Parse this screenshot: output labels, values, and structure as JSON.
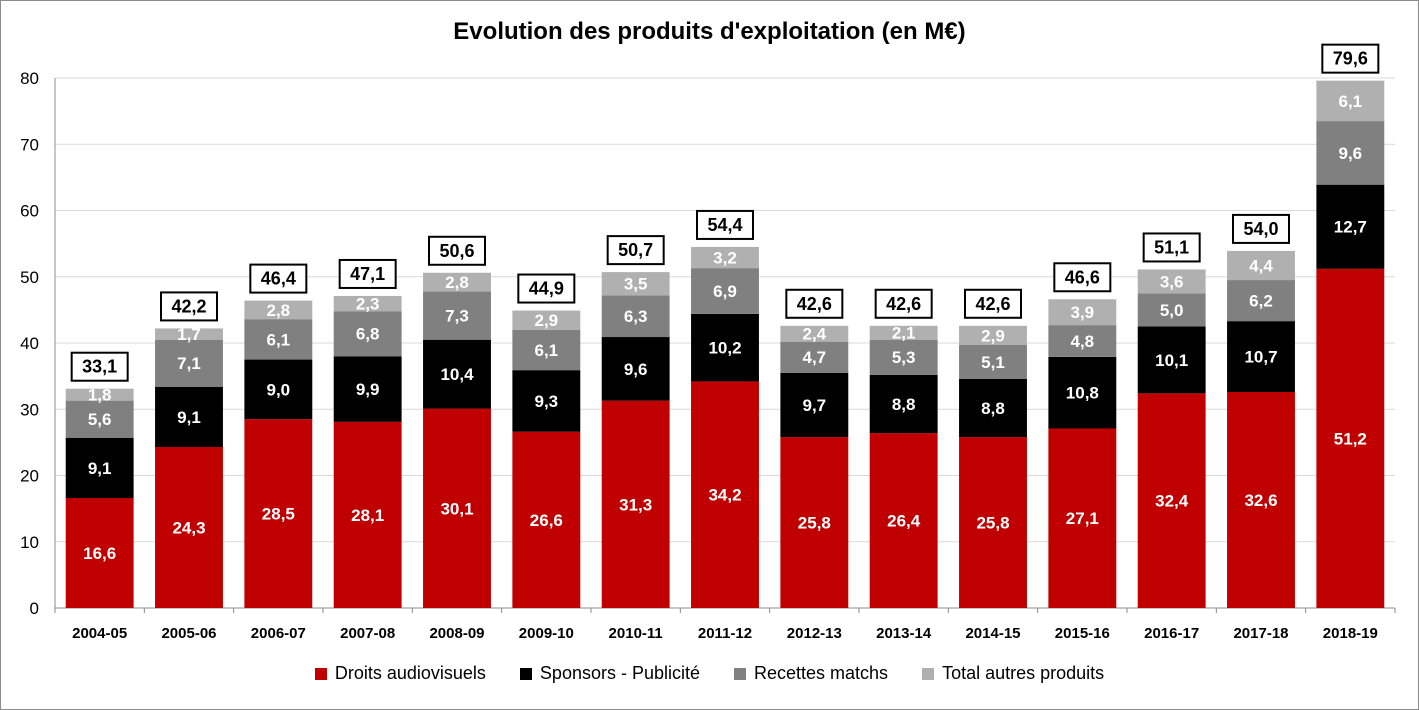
{
  "chart_data": {
    "type": "bar",
    "stacked": true,
    "title": "Evolution des produits d'exploitation (en M€)",
    "xlabel": "",
    "ylabel": "",
    "ylim": [
      0,
      80
    ],
    "yticks": [
      "0",
      "10",
      "20",
      "30",
      "40",
      "50",
      "60",
      "70",
      "80"
    ],
    "grid": true,
    "legend_position": "bottom",
    "categories": [
      "2004-05",
      "2005-06",
      "2006-07",
      "2007-08",
      "2008-09",
      "2009-10",
      "2010-11",
      "2011-12",
      "2012-13",
      "2013-14",
      "2014-15",
      "2015-16",
      "2016-17",
      "2017-18",
      "2018-19"
    ],
    "series": [
      {
        "name": "Droits audiovisuels",
        "color": "#c00000",
        "label_color": "#ffffff",
        "values": [
          16.6,
          24.3,
          28.5,
          28.1,
          30.1,
          26.6,
          31.3,
          34.2,
          25.8,
          26.4,
          25.8,
          27.1,
          32.4,
          32.6,
          51.2
        ],
        "labels": [
          "16,6",
          "24,3",
          "28,5",
          "28,1",
          "30,1",
          "26,6",
          "31,3",
          "34,2",
          "25,8",
          "26,4",
          "25,8",
          "27,1",
          "32,4",
          "32,6",
          "51,2"
        ]
      },
      {
        "name": "Sponsors - Publicité",
        "color": "#000000",
        "label_color": "#ffffff",
        "values": [
          9.1,
          9.1,
          9.0,
          9.9,
          10.4,
          9.3,
          9.6,
          10.2,
          9.7,
          8.8,
          8.8,
          10.8,
          10.1,
          10.7,
          12.7
        ],
        "labels": [
          "9,1",
          "9,1",
          "9,0",
          "9,9",
          "10,4",
          "9,3",
          "9,6",
          "10,2",
          "9,7",
          "8,8",
          "8,8",
          "10,8",
          "10,1",
          "10,7",
          "12,7"
        ]
      },
      {
        "name": "Recettes matchs",
        "color": "#808080",
        "label_color": "#ffffff",
        "values": [
          5.6,
          7.1,
          6.1,
          6.8,
          7.3,
          6.1,
          6.3,
          6.9,
          4.7,
          5.3,
          5.1,
          4.8,
          5.0,
          6.2,
          9.6
        ],
        "labels": [
          "5,6",
          "7,1",
          "6,1",
          "6,8",
          "7,3",
          "6,1",
          "6,3",
          "6,9",
          "4,7",
          "5,3",
          "5,1",
          "4,8",
          "5,0",
          "6,2",
          "9,6"
        ]
      },
      {
        "name": "Total autres produits",
        "color": "#b0b0b0",
        "label_color": "#ffffff",
        "values": [
          1.8,
          1.7,
          2.8,
          2.3,
          2.8,
          2.9,
          3.5,
          3.2,
          2.4,
          2.1,
          2.9,
          3.9,
          3.6,
          4.4,
          6.1
        ],
        "labels": [
          "1,8",
          "1,7",
          "2,8",
          "2,3",
          "2,8",
          "2,9",
          "3,5",
          "3,2",
          "2,4",
          "2,1",
          "2,9",
          "3,9",
          "3,6",
          "4,4",
          "6,1"
        ]
      }
    ],
    "totals": [
      33.1,
      42.2,
      46.4,
      47.1,
      50.6,
      44.9,
      50.7,
      54.4,
      42.6,
      42.6,
      42.6,
      46.6,
      51.1,
      54.0,
      79.6
    ],
    "total_labels": [
      "33,1",
      "42,2",
      "46,4",
      "47,1",
      "50,6",
      "44,9",
      "50,7",
      "54,4",
      "42,6",
      "42,6",
      "42,6",
      "46,6",
      "51,1",
      "54,0",
      "79,6"
    ]
  }
}
